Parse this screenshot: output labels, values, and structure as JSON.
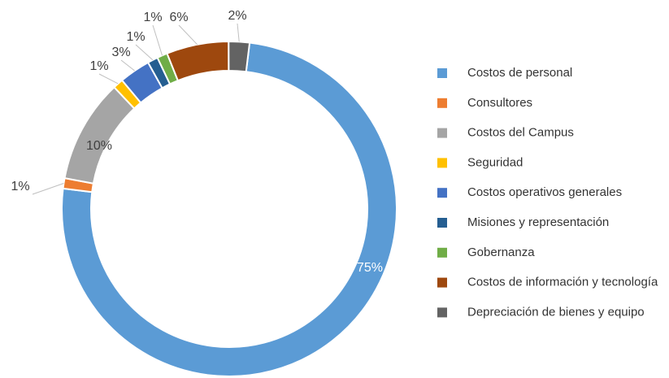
{
  "chart_data": {
    "type": "donut",
    "categories": [
      "Costos de personal",
      "Consultores",
      "Costos del Campus",
      "Seguridad",
      "Costos operativos generales",
      "Misiones y representación",
      "Gobernanza",
      "Costos de información y tecnología",
      "Depreciación de bienes y equipo"
    ],
    "values": [
      75,
      1,
      10,
      1,
      3,
      1,
      1,
      6,
      2
    ],
    "value_labels": [
      "75%",
      "1%",
      "10%",
      "1%",
      "3%",
      "1%",
      "1%",
      "6%",
      "2%"
    ],
    "colors": [
      "#5b9bd5",
      "#ed7d31",
      "#a5a5a5",
      "#ffc000",
      "#4472c4",
      "#255e91",
      "#70ad47",
      "#9e480e",
      "#636363"
    ],
    "legend": "right"
  }
}
